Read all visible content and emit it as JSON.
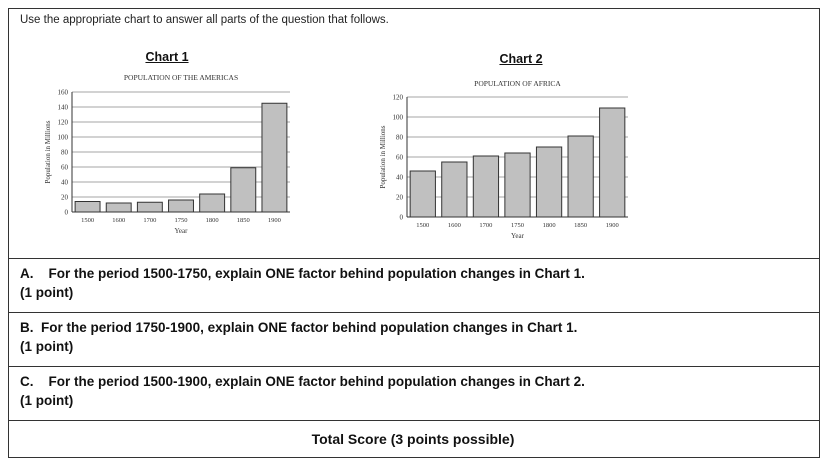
{
  "instruction": "Use the appropriate chart to answer all parts of the question that follows.",
  "chart_data": [
    {
      "type": "bar",
      "label": "Chart 1",
      "title": "POPULATION OF THE AMERICAS",
      "xlabel": "Year",
      "ylabel": "Population in Millions",
      "categories": [
        "1500",
        "1600",
        "1700",
        "1750",
        "1800",
        "1850",
        "1900"
      ],
      "values": [
        14,
        12,
        13,
        16,
        24,
        59,
        145
      ],
      "ylim": [
        0,
        160
      ],
      "yticks": [
        0,
        20,
        40,
        60,
        80,
        100,
        120,
        140,
        160
      ],
      "grid": true,
      "bar_color": "#c0c0c0"
    },
    {
      "type": "bar",
      "label": "Chart 2",
      "title": "POPULATION OF AFRICA",
      "xlabel": "Year",
      "ylabel": "Population in Millions",
      "categories": [
        "1500",
        "1600",
        "1700",
        "1750",
        "1800",
        "1850",
        "1900"
      ],
      "values": [
        46,
        55,
        61,
        64,
        70,
        81,
        109
      ],
      "ylim": [
        0,
        120
      ],
      "yticks": [
        0,
        20,
        40,
        60,
        80,
        100,
        120
      ],
      "grid": true,
      "bar_color": "#c0c0c0"
    }
  ],
  "questions": [
    {
      "letter": "A.",
      "text": "For the period 1500-1750, explain ONE factor behind population changes in Chart 1.",
      "points": "(1 point)"
    },
    {
      "letter": "B.",
      "text": "For the period 1750-1900, explain ONE factor behind population changes in Chart 1.",
      "points": "(1 point)"
    },
    {
      "letter": "C.",
      "text": "For the period 1500-1900, explain ONE factor behind population changes in Chart 2.",
      "points": "(1 point)"
    }
  ],
  "total": "Total Score (3 points possible)"
}
